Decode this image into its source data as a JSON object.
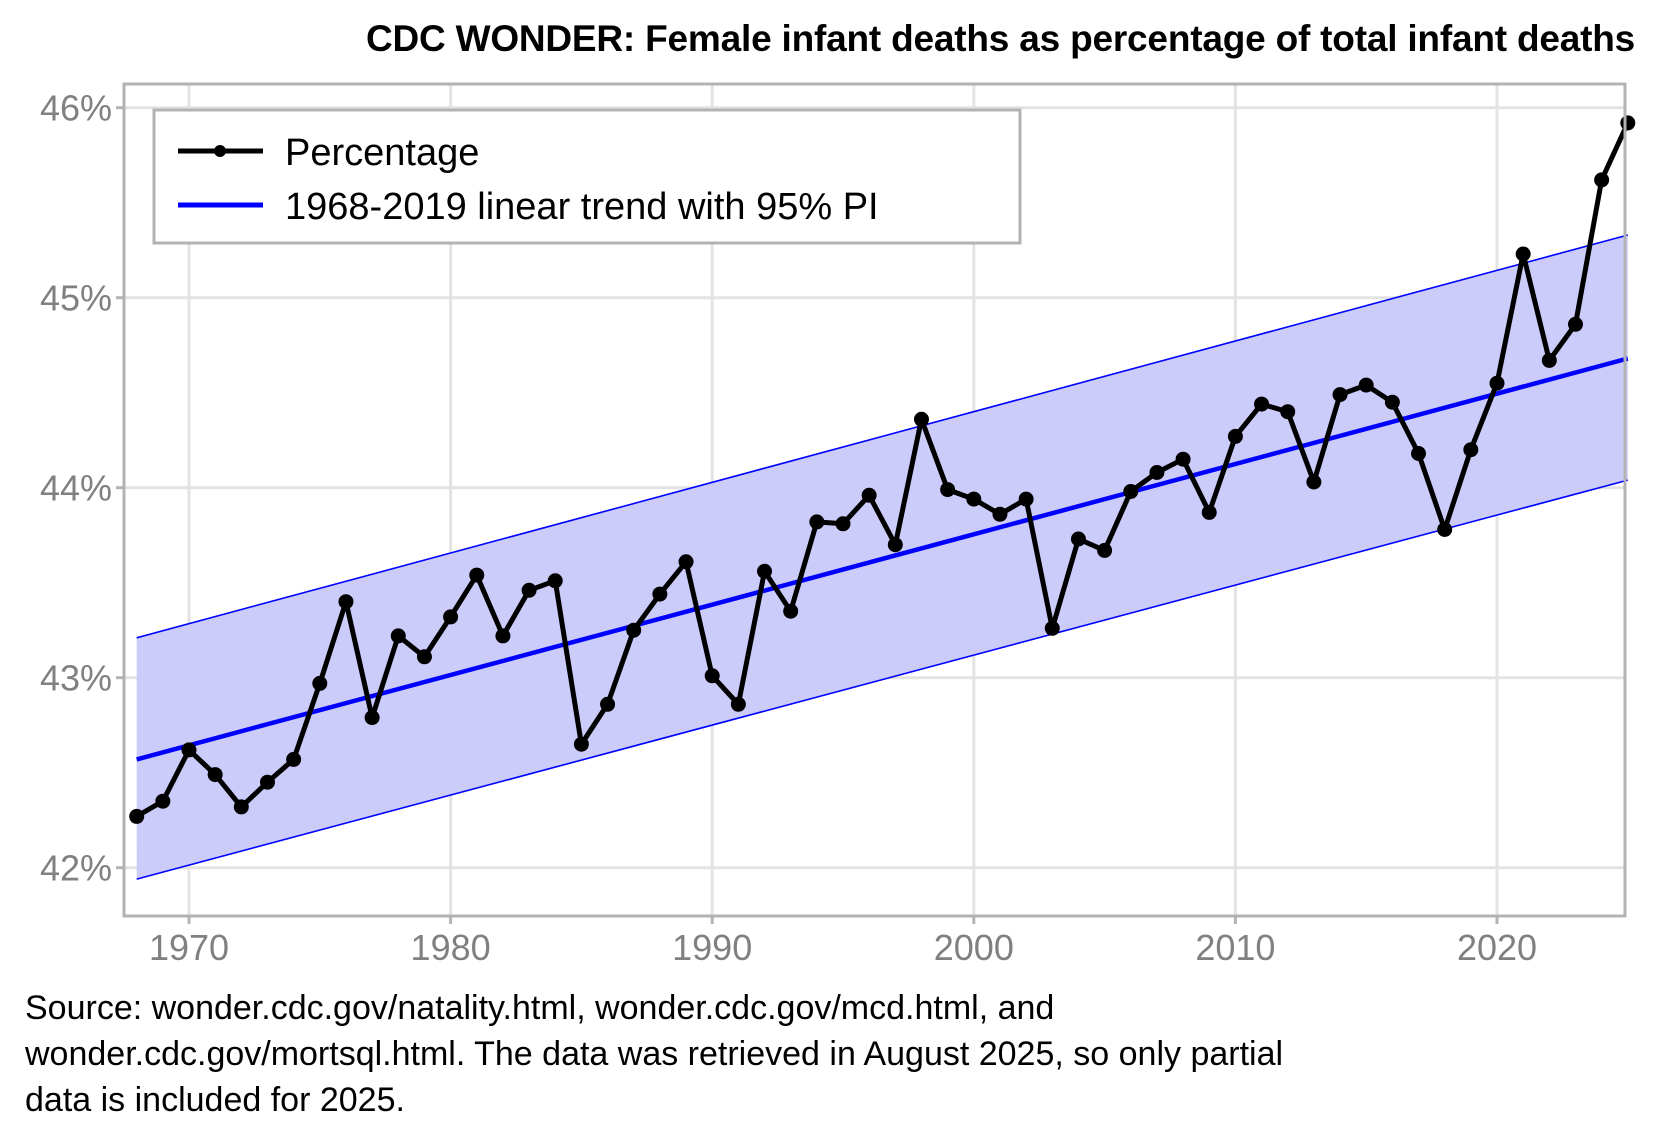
{
  "chart_data": {
    "type": "line",
    "title": "CDC WONDER: Female infant deaths as percentage of total infant deaths",
    "xlabel": "",
    "ylabel": "",
    "xlim": [
      1968,
      2025
    ],
    "ylim": [
      41.8,
      46.05
    ],
    "x_ticks": [
      1970,
      1980,
      1990,
      2000,
      2010,
      2020
    ],
    "x_tick_labels": [
      "1970",
      "1980",
      "1990",
      "2000",
      "2010",
      "2020"
    ],
    "y_ticks": [
      42,
      43,
      44,
      45,
      46
    ],
    "y_tick_labels": [
      "42%",
      "43%",
      "44%",
      "45%",
      "46%"
    ],
    "grid": true,
    "legend_position": "top-left",
    "series": [
      {
        "name": "Percentage",
        "color": "#000000",
        "x": [
          1968,
          1969,
          1970,
          1971,
          1972,
          1973,
          1974,
          1975,
          1976,
          1977,
          1978,
          1979,
          1980,
          1981,
          1982,
          1983,
          1984,
          1985,
          1986,
          1987,
          1988,
          1989,
          1990,
          1991,
          1992,
          1993,
          1994,
          1995,
          1996,
          1997,
          1998,
          1999,
          2000,
          2001,
          2002,
          2003,
          2004,
          2005,
          2006,
          2007,
          2008,
          2009,
          2010,
          2011,
          2012,
          2013,
          2014,
          2015,
          2016,
          2017,
          2018,
          2019,
          2020,
          2021,
          2022,
          2023,
          2024,
          2025
        ],
        "values": [
          42.27,
          42.35,
          42.62,
          42.49,
          42.32,
          42.45,
          42.57,
          42.97,
          43.4,
          42.79,
          43.22,
          43.11,
          43.32,
          43.54,
          43.22,
          43.46,
          43.51,
          42.65,
          42.86,
          43.25,
          43.44,
          43.61,
          43.01,
          42.86,
          43.56,
          43.35,
          43.82,
          43.81,
          43.96,
          43.7,
          44.36,
          43.99,
          43.94,
          43.86,
          43.94,
          43.26,
          43.73,
          43.67,
          43.98,
          44.08,
          44.15,
          43.87,
          44.27,
          44.44,
          44.4,
          44.03,
          44.49,
          44.54,
          44.45,
          44.18,
          43.78,
          44.2,
          44.55,
          45.23,
          44.67,
          44.86,
          45.62,
          45.92
        ]
      },
      {
        "name": "1968-2019 linear trend with 95% PI",
        "color": "#0000ff",
        "band_color": "#ccccfa",
        "x": [
          1968,
          2025
        ],
        "values": [
          42.57,
          44.68
        ],
        "lower": [
          41.94,
          44.04
        ],
        "upper": [
          43.21,
          45.33
        ]
      }
    ],
    "legend": [
      "Percentage",
      "1968-2019 linear trend with 95% PI"
    ],
    "caption": "Source: wonder.cdc.gov/natality.html, wonder.cdc.gov/mcd.html, and wonder.cdc.gov/mortsql.html. The data was retrieved in August 2025, so only partial data is included for 2025."
  },
  "caption_lines": [
    "Source: wonder.cdc.gov/natality.html, wonder.cdc.gov/mcd.html, and",
    "wonder.cdc.gov/mortsql.html. The data was retrieved in August 2025, so only partial",
    "data is included for 2025."
  ]
}
